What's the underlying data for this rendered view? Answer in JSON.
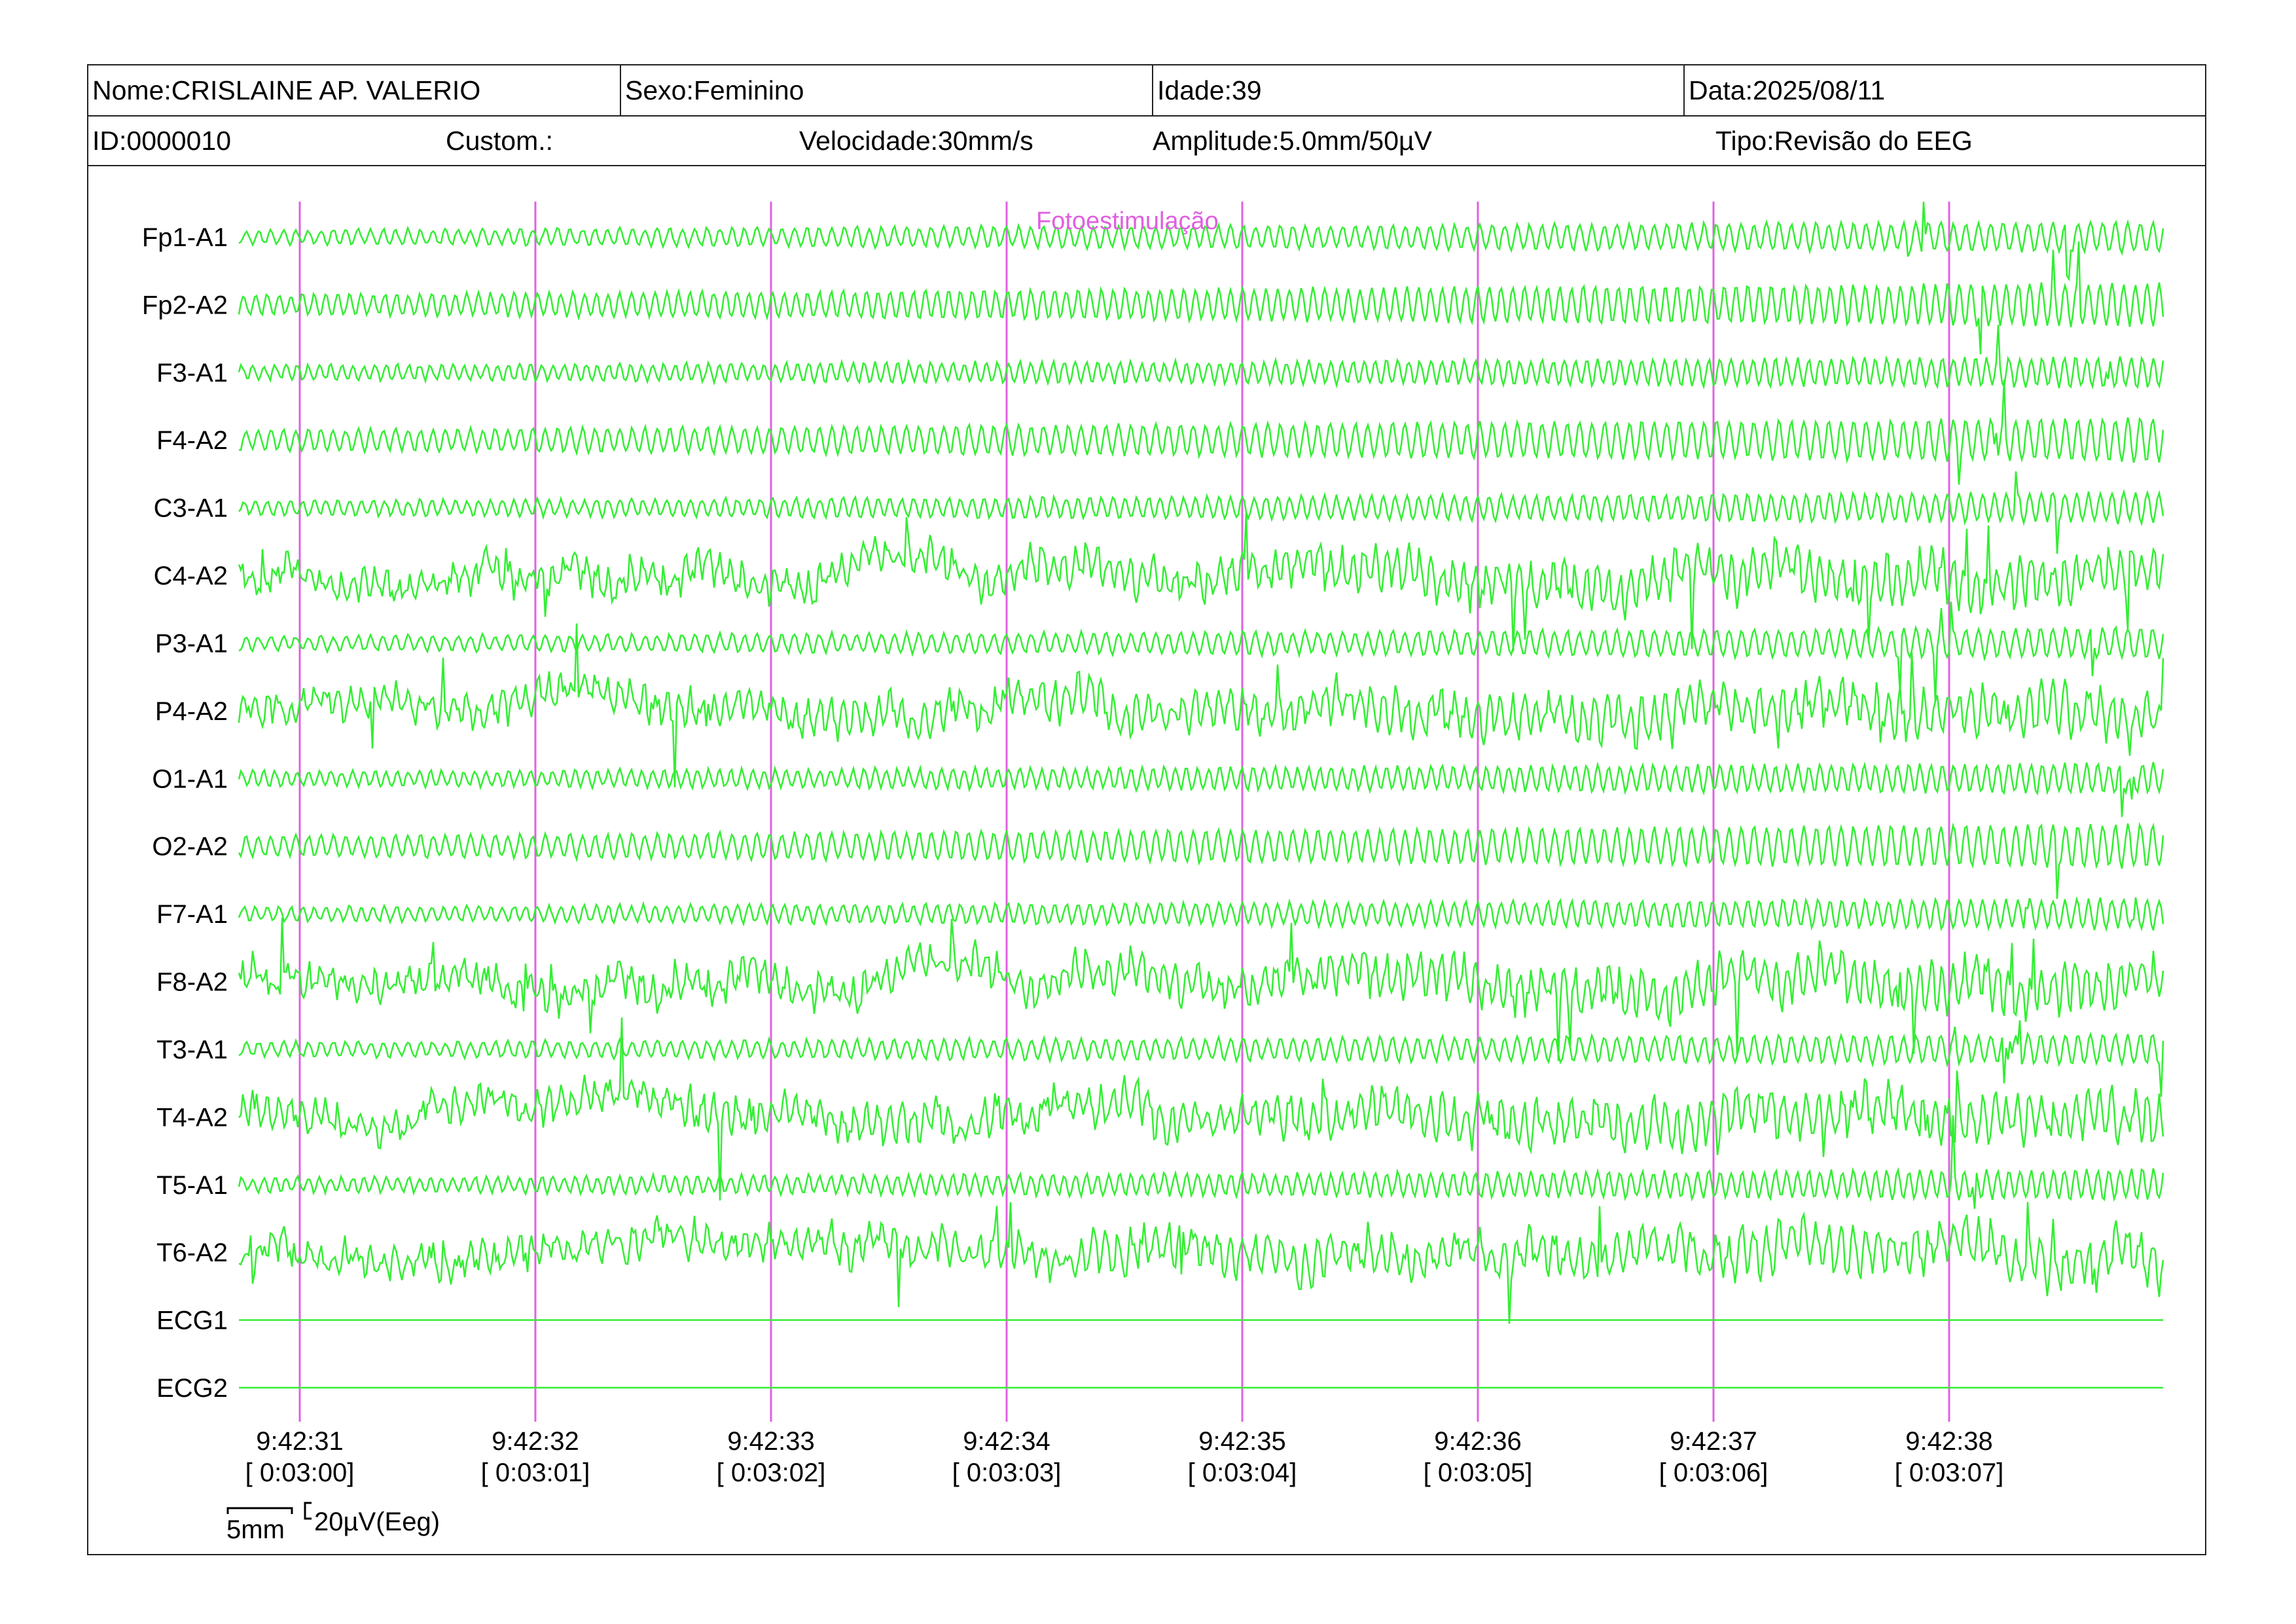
{
  "header": {
    "nome": "Nome:CRISLAINE AP. VALERIO",
    "sexo": "Sexo:Feminino",
    "idade": "Idade:39",
    "data": "Data:2025/08/11",
    "id": "ID:0000010",
    "custom": "Custom.:",
    "velocidade": "Velocidade:30mm/s",
    "amplitude": "Amplitude:5.0mm/50µV",
    "tipo": "Tipo:Revisão do EEG"
  },
  "chart_data": {
    "type": "line",
    "title": "",
    "channels": [
      "Fp1-A1",
      "Fp2-A2",
      "F3-A1",
      "F4-A2",
      "C3-A1",
      "C4-A2",
      "P3-A1",
      "P4-A2",
      "O1-A1",
      "O2-A2",
      "F7-A1",
      "F8-A2",
      "T3-A1",
      "T4-A2",
      "T5-A1",
      "T6-A2",
      "ECG1",
      "ECG2"
    ],
    "time_labels": [
      "9:42:31",
      "9:42:32",
      "9:42:33",
      "9:42:34",
      "9:42:35",
      "9:42:36",
      "9:42:37",
      "9:42:38"
    ],
    "elapsed_labels": [
      "[ 0:03:00]",
      "[ 0:03:01]",
      "[ 0:03:02]",
      "[ 0:03:03]",
      "[ 0:03:04]",
      "[ 0:03:05]",
      "[ 0:03:06]",
      "[ 0:03:07]"
    ],
    "annotation": "Fotoestimulação",
    "scale_time": "5mm",
    "scale_amplitude": "20µV(Eeg)",
    "colors": {
      "trace": "#33ee33",
      "marker": "#e060e0"
    }
  }
}
